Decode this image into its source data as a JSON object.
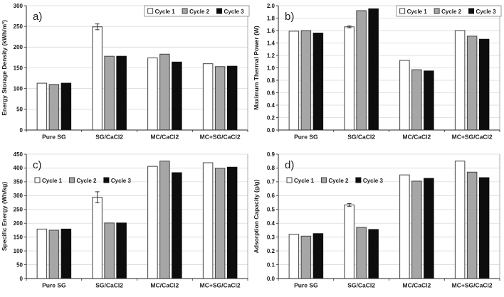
{
  "figure": {
    "background": "#ffffff",
    "colors": {
      "cycle1_fill": "#ffffff",
      "cycle2_fill": "#a6a6a6",
      "cycle3_fill": "#0d0d0d",
      "bar_border": "#404040",
      "gridline": "#d9d9d9",
      "axis": "#262626",
      "text": "#1a1a1a",
      "legend_border": "#7f7f7f",
      "error_bar": "#333333"
    }
  },
  "chart_data": [
    {
      "panel_label": "a)",
      "type": "bar",
      "title": "",
      "xlabel": "",
      "ylabel": "Energy Storage Density (kWh/m³)",
      "ylim": [
        0,
        300
      ],
      "ytick_step": 50,
      "ytick_decimals": 0,
      "grid": true,
      "legend_position": "top-right",
      "legend_border": true,
      "categories": [
        "Pure SG",
        "SG/CaCl2",
        "MC/CaCl2",
        "MC+SG/CaCl2"
      ],
      "series": [
        {
          "name": "Cycle 1",
          "values": [
            113,
            249,
            174,
            160
          ],
          "errors": [
            0,
            7,
            0,
            0
          ]
        },
        {
          "name": "Cycle 2",
          "values": [
            110,
            178,
            183,
            153
          ]
        },
        {
          "name": "Cycle 3",
          "values": [
            113,
            178,
            164,
            154
          ]
        }
      ]
    },
    {
      "panel_label": "b)",
      "type": "bar",
      "title": "",
      "xlabel": "",
      "ylabel": "Maximum Thermal Power (W)",
      "ylim": [
        0,
        2.0
      ],
      "ytick_step": 0.2,
      "ytick_decimals": 1,
      "grid": true,
      "legend_position": "top-right",
      "legend_border": true,
      "categories": [
        "Pure SG",
        "SG/CaCl2",
        "MC/CaCl2",
        "MC+SG/CaCl2"
      ],
      "series": [
        {
          "name": "Cycle 1",
          "values": [
            1.59,
            1.66,
            1.12,
            1.6
          ],
          "errors": [
            0,
            0.015,
            0,
            0
          ]
        },
        {
          "name": "Cycle 2",
          "values": [
            1.6,
            1.92,
            0.97,
            1.51
          ]
        },
        {
          "name": "Cycle 3",
          "values": [
            1.56,
            1.95,
            0.95,
            1.46
          ]
        }
      ]
    },
    {
      "panel_label": "c)",
      "type": "bar",
      "title": "",
      "xlabel": "",
      "ylabel": "Specific Energy (Wh/kg)",
      "ylim": [
        0,
        450
      ],
      "ytick_step": 50,
      "ytick_decimals": 0,
      "grid": true,
      "legend_position": "mid-left",
      "legend_border": false,
      "categories": [
        "Pure SG",
        "SG/CaCl2",
        "MC/CaCl2",
        "MC+SG/CaCl2"
      ],
      "series": [
        {
          "name": "Cycle 1",
          "values": [
            179,
            294,
            406,
            419
          ],
          "errors": [
            0,
            20,
            0,
            0
          ]
        },
        {
          "name": "Cycle 2",
          "values": [
            175,
            201,
            425,
            399
          ]
        },
        {
          "name": "Cycle 3",
          "values": [
            179,
            201,
            383,
            403
          ]
        }
      ]
    },
    {
      "panel_label": "d)",
      "type": "bar",
      "title": "",
      "xlabel": "",
      "ylabel": "Adsorption Capacity (g/g)",
      "ylim": [
        0,
        0.9
      ],
      "ytick_step": 0.1,
      "ytick_decimals": 1,
      "grid": true,
      "legend_position": "mid-left",
      "legend_border": false,
      "categories": [
        "Pure SG",
        "SG/CaCl2",
        "MC/CaCl2",
        "MC+SG/CaCl2"
      ],
      "series": [
        {
          "name": "Cycle 1",
          "values": [
            0.32,
            0.533,
            0.75,
            0.85
          ],
          "errors": [
            0,
            0.01,
            0,
            0
          ]
        },
        {
          "name": "Cycle 2",
          "values": [
            0.307,
            0.37,
            0.705,
            0.77
          ]
        },
        {
          "name": "Cycle 3",
          "values": [
            0.325,
            0.355,
            0.725,
            0.73
          ]
        }
      ]
    }
  ]
}
